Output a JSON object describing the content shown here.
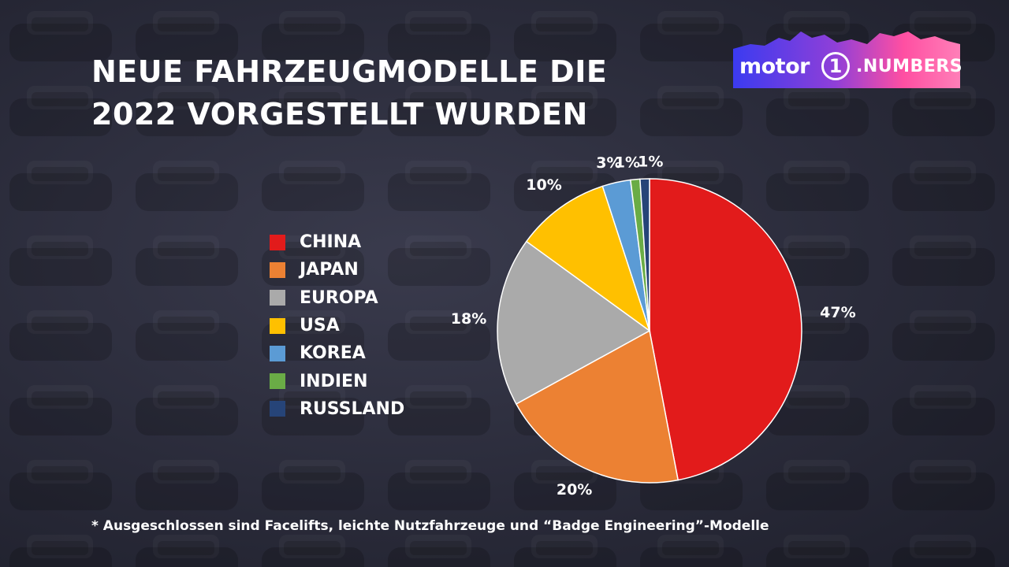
{
  "title_lines": [
    "NEUE FAHRZEUGMODELLE DIE",
    "2022 VORGESTELLT WURDEN"
  ],
  "logo": {
    "word": "motor",
    "one": "1",
    "numbers": ".NUMBERS"
  },
  "footnote": "* Ausgeschlossen sind Facelifts, leichte Nutzfahrzeuge und “Badge Engineering”-Modelle",
  "colors": {
    "china": "#e21b1b",
    "japan": "#ec8133",
    "europa": "#aaaaaa",
    "usa": "#ffc000",
    "korea": "#5b9bd5",
    "indien": "#6aac46",
    "russland": "#264478"
  },
  "chart_data": {
    "type": "pie",
    "title": "NEUE FAHRZEUGMODELLE DIE 2022 VORGESTELLT WURDEN",
    "legend_position": "left",
    "slices": [
      {
        "label": "CHINA",
        "value": 47,
        "value_label": "47%",
        "color": "#e21b1b"
      },
      {
        "label": "JAPAN",
        "value": 20,
        "value_label": "20%",
        "color": "#ec8133"
      },
      {
        "label": "EUROPA",
        "value": 18,
        "value_label": "18%",
        "color": "#aaaaaa"
      },
      {
        "label": "USA",
        "value": 10,
        "value_label": "10%",
        "color": "#ffc000"
      },
      {
        "label": "KOREA",
        "value": 3,
        "value_label": "3%",
        "color": "#5b9bd5"
      },
      {
        "label": "INDIEN",
        "value": 1,
        "value_label": "1%",
        "color": "#6aac46"
      },
      {
        "label": "RUSSLAND",
        "value": 1,
        "value_label": "1%",
        "color": "#264478"
      }
    ]
  }
}
